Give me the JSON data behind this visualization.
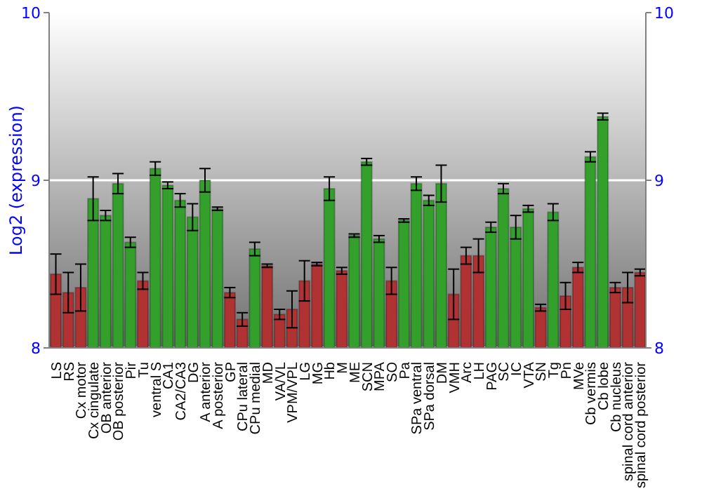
{
  "chart_data": {
    "type": "bar",
    "ylabel": "Log2 (expression)",
    "categories": [
      "LS",
      "RS",
      "Cx motor",
      "Cx cingulate",
      "OB anterior",
      "OB posterior",
      "Pir",
      "Tu",
      "ventral S",
      "CA1",
      "CA2/CA3",
      "DG",
      "A anterior",
      "A posterior",
      "GP",
      "CPu lateral",
      "CPu medial",
      "MD",
      "VA/VL",
      "VPM/VPL",
      "LG",
      "MG",
      "Hb",
      "M",
      "ME",
      "SCN",
      "MPA",
      "SO",
      "Pa",
      "SPa ventral",
      "SPa dorsal",
      "DM",
      "VMH",
      "Arc",
      "LH",
      "PAG",
      "SC",
      "IC",
      "VTA",
      "SN",
      "Tg",
      "Pn",
      "MVe",
      "Cb vermis",
      "Cb lobe",
      "Cb nucleus",
      "spinal cord anterior",
      "spinal cord posterior"
    ],
    "values": [
      8.44,
      8.33,
      8.36,
      8.89,
      8.79,
      8.98,
      8.63,
      8.4,
      9.07,
      8.97,
      8.88,
      8.78,
      9.0,
      8.83,
      8.33,
      8.17,
      8.59,
      8.49,
      8.2,
      8.23,
      8.4,
      8.5,
      8.95,
      8.46,
      8.67,
      9.11,
      8.65,
      8.4,
      8.76,
      8.98,
      8.88,
      8.98,
      8.32,
      8.55,
      8.55,
      8.72,
      8.95,
      8.72,
      8.83,
      8.24,
      8.81,
      8.31,
      8.48,
      9.14,
      9.38,
      8.36,
      8.36,
      8.45
    ],
    "errors": [
      0.12,
      0.12,
      0.14,
      0.13,
      0.03,
      0.06,
      0.03,
      0.05,
      0.04,
      0.02,
      0.04,
      0.08,
      0.07,
      0.01,
      0.03,
      0.04,
      0.04,
      0.01,
      0.03,
      0.11,
      0.12,
      0.01,
      0.07,
      0.02,
      0.01,
      0.02,
      0.02,
      0.08,
      0.01,
      0.04,
      0.03,
      0.11,
      0.15,
      0.05,
      0.1,
      0.03,
      0.03,
      0.07,
      0.02,
      0.02,
      0.05,
      0.08,
      0.03,
      0.03,
      0.02,
      0.03,
      0.09,
      0.02
    ],
    "colors": [
      "#b03232",
      "#b03232",
      "#b03232",
      "#33a02c",
      "#33a02c",
      "#33a02c",
      "#33a02c",
      "#b03232",
      "#33a02c",
      "#33a02c",
      "#33a02c",
      "#33a02c",
      "#33a02c",
      "#33a02c",
      "#b03232",
      "#b03232",
      "#33a02c",
      "#b03232",
      "#b03232",
      "#b03232",
      "#b03232",
      "#b03232",
      "#33a02c",
      "#b03232",
      "#33a02c",
      "#33a02c",
      "#33a02c",
      "#b03232",
      "#33a02c",
      "#33a02c",
      "#33a02c",
      "#33a02c",
      "#b03232",
      "#b03232",
      "#b03232",
      "#33a02c",
      "#33a02c",
      "#33a02c",
      "#33a02c",
      "#b03232",
      "#33a02c",
      "#b03232",
      "#b03232",
      "#33a02c",
      "#33a02c",
      "#b03232",
      "#b03232",
      "#b03232"
    ],
    "ylim": [
      8,
      10
    ],
    "yticks": [
      8,
      9,
      10
    ],
    "y2lim": [
      8,
      10
    ],
    "y2ticks": [
      8,
      9,
      10
    ],
    "grid": "y"
  }
}
